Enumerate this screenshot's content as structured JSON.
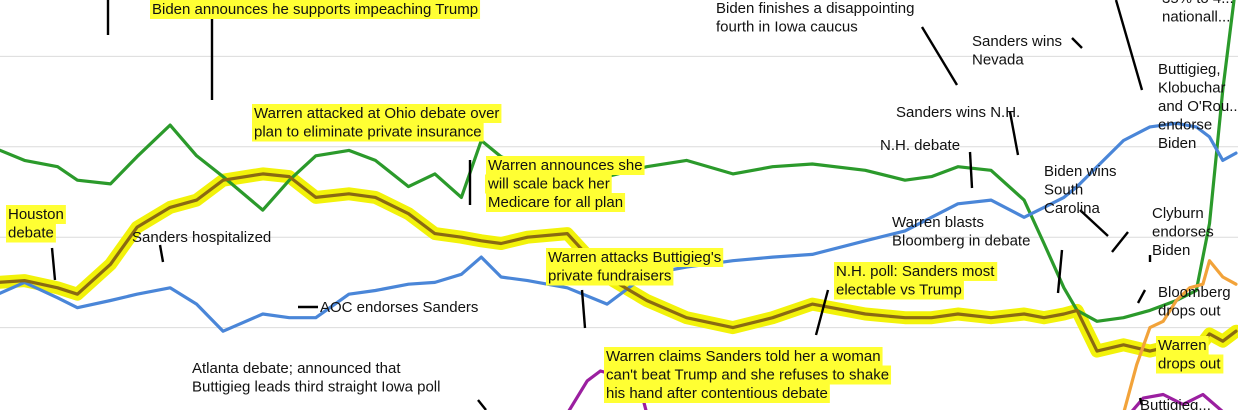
{
  "chart_data": {
    "type": "line",
    "title": "",
    "xlabel": "",
    "ylabel": "",
    "x_range": [
      "2019-09-01",
      "2020-03-06"
    ],
    "ylim": [
      0,
      50
    ],
    "grid": true,
    "grid_values": [
      10,
      20,
      30,
      40
    ],
    "colors": {
      "biden": "#2b9a2b",
      "sanders": "#4a86d8",
      "warren": "#8a6a12",
      "warren_highlight": "#f2f20a",
      "bloomberg": "#f2a33a",
      "buttigieg": "#9b1fa0",
      "label_highlight": "#ffff33"
    },
    "series": [
      {
        "key": "biden",
        "values": [
          [
            "2019-09-01",
            29.7
          ],
          [
            "2019-09-05",
            28.5
          ],
          [
            "2019-09-10",
            27.8
          ],
          [
            "2019-09-13",
            26.3
          ],
          [
            "2019-09-18",
            25.9
          ],
          [
            "2019-09-22",
            28.9
          ],
          [
            "2019-09-27",
            32.4
          ],
          [
            "2019-10-01",
            29.0
          ],
          [
            "2019-10-05",
            26.7
          ],
          [
            "2019-10-11",
            23.0
          ],
          [
            "2019-10-15",
            26.3
          ],
          [
            "2019-10-19",
            29.0
          ],
          [
            "2019-10-24",
            29.6
          ],
          [
            "2019-10-28",
            28.5
          ],
          [
            "2019-11-02",
            25.6
          ],
          [
            "2019-11-06",
            27.0
          ],
          [
            "2019-11-10",
            24.4
          ],
          [
            "2019-11-13",
            30.7
          ],
          [
            "2019-11-16",
            28.9
          ],
          [
            "2019-11-20",
            27.8
          ],
          [
            "2019-11-26",
            25.6
          ],
          [
            "2019-12-02",
            26.7
          ],
          [
            "2019-12-08",
            27.8
          ],
          [
            "2019-12-14",
            28.5
          ],
          [
            "2019-12-21",
            27.0
          ],
          [
            "2019-12-27",
            27.8
          ],
          [
            "2020-01-02",
            28.1
          ],
          [
            "2020-01-10",
            27.4
          ],
          [
            "2020-01-16",
            26.3
          ],
          [
            "2020-01-20",
            26.7
          ],
          [
            "2020-01-24",
            27.8
          ],
          [
            "2020-01-29",
            27.4
          ],
          [
            "2020-02-03",
            24.1
          ],
          [
            "2020-02-06",
            19.3
          ],
          [
            "2020-02-09",
            14.4
          ],
          [
            "2020-02-11",
            11.9
          ],
          [
            "2020-02-14",
            10.7
          ],
          [
            "2020-02-18",
            11.1
          ],
          [
            "2020-02-22",
            11.9
          ],
          [
            "2020-02-26",
            13.0
          ],
          [
            "2020-02-29",
            14.1
          ],
          [
            "2020-03-02",
            21.5
          ],
          [
            "2020-03-04",
            36.3
          ],
          [
            "2020-03-06",
            48.0
          ]
        ]
      },
      {
        "key": "sanders",
        "values": [
          [
            "2019-09-01",
            13.7
          ],
          [
            "2019-09-05",
            15.0
          ],
          [
            "2019-09-10",
            13.3
          ],
          [
            "2019-09-13",
            12.2
          ],
          [
            "2019-09-18",
            13.0
          ],
          [
            "2019-09-22",
            13.7
          ],
          [
            "2019-09-27",
            14.4
          ],
          [
            "2019-10-01",
            12.6
          ],
          [
            "2019-10-05",
            9.6
          ],
          [
            "2019-10-11",
            11.5
          ],
          [
            "2019-10-15",
            11.1
          ],
          [
            "2019-10-19",
            11.1
          ],
          [
            "2019-10-24",
            13.7
          ],
          [
            "2019-10-28",
            14.1
          ],
          [
            "2019-11-02",
            14.8
          ],
          [
            "2019-11-06",
            15.0
          ],
          [
            "2019-11-10",
            15.9
          ],
          [
            "2019-11-13",
            17.8
          ],
          [
            "2019-11-16",
            15.6
          ],
          [
            "2019-11-20",
            15.2
          ],
          [
            "2019-11-26",
            14.4
          ],
          [
            "2019-12-02",
            12.6
          ],
          [
            "2019-12-08",
            15.9
          ],
          [
            "2019-12-14",
            16.7
          ],
          [
            "2019-12-21",
            17.4
          ],
          [
            "2019-12-27",
            17.8
          ],
          [
            "2020-01-02",
            18.1
          ],
          [
            "2020-01-10",
            19.6
          ],
          [
            "2020-01-16",
            20.7
          ],
          [
            "2020-01-20",
            22.2
          ],
          [
            "2020-01-24",
            23.7
          ],
          [
            "2020-01-29",
            24.1
          ],
          [
            "2020-02-03",
            22.2
          ],
          [
            "2020-02-06",
            23.3
          ],
          [
            "2020-02-09",
            24.4
          ],
          [
            "2020-02-11",
            25.6
          ],
          [
            "2020-02-14",
            27.8
          ],
          [
            "2020-02-18",
            30.7
          ],
          [
            "2020-02-22",
            32.2
          ],
          [
            "2020-02-26",
            32.6
          ],
          [
            "2020-02-29",
            32.2
          ],
          [
            "2020-03-02",
            31.1
          ],
          [
            "2020-03-04",
            28.5
          ],
          [
            "2020-03-06",
            29.3
          ]
        ]
      },
      {
        "key": "warren",
        "values": [
          [
            "2019-09-01",
            15.0
          ],
          [
            "2019-09-05",
            15.2
          ],
          [
            "2019-09-10",
            14.4
          ],
          [
            "2019-09-13",
            13.7
          ],
          [
            "2019-09-18",
            17.0
          ],
          [
            "2019-09-22",
            21.1
          ],
          [
            "2019-09-27",
            23.3
          ],
          [
            "2019-10-01",
            24.1
          ],
          [
            "2019-10-05",
            26.3
          ],
          [
            "2019-10-11",
            27.0
          ],
          [
            "2019-10-15",
            26.7
          ],
          [
            "2019-10-19",
            24.4
          ],
          [
            "2019-10-24",
            24.8
          ],
          [
            "2019-10-28",
            24.4
          ],
          [
            "2019-11-02",
            22.6
          ],
          [
            "2019-11-06",
            20.4
          ],
          [
            "2019-11-10",
            20.0
          ],
          [
            "2019-11-13",
            19.6
          ],
          [
            "2019-11-16",
            19.3
          ],
          [
            "2019-11-20",
            20.0
          ],
          [
            "2019-11-26",
            20.4
          ],
          [
            "2019-12-02",
            15.6
          ],
          [
            "2019-12-08",
            13.0
          ],
          [
            "2019-12-14",
            11.1
          ],
          [
            "2019-12-21",
            10.0
          ],
          [
            "2019-12-27",
            11.1
          ],
          [
            "2020-01-02",
            12.6
          ],
          [
            "2020-01-10",
            11.5
          ],
          [
            "2020-01-16",
            11.1
          ],
          [
            "2020-01-20",
            11.1
          ],
          [
            "2020-01-24",
            11.5
          ],
          [
            "2020-01-29",
            11.1
          ],
          [
            "2020-02-03",
            11.5
          ],
          [
            "2020-02-06",
            11.1
          ],
          [
            "2020-02-09",
            11.5
          ],
          [
            "2020-02-11",
            11.9
          ],
          [
            "2020-02-14",
            7.4
          ],
          [
            "2020-02-18",
            8.1
          ],
          [
            "2020-02-22",
            7.4
          ],
          [
            "2020-02-26",
            8.1
          ],
          [
            "2020-02-29",
            7.4
          ],
          [
            "2020-03-02",
            9.3
          ],
          [
            "2020-03-04",
            8.5
          ],
          [
            "2020-03-06",
            9.6
          ]
        ]
      },
      {
        "key": "bloomberg",
        "values": [
          [
            "2020-02-18",
            0.5
          ],
          [
            "2020-02-20",
            5.9
          ],
          [
            "2020-02-22",
            10.0
          ],
          [
            "2020-02-24",
            10.7
          ],
          [
            "2020-02-26",
            13.0
          ],
          [
            "2020-02-28",
            14.4
          ],
          [
            "2020-03-01",
            14.8
          ],
          [
            "2020-03-02",
            17.4
          ],
          [
            "2020-03-04",
            15.6
          ],
          [
            "2020-03-06",
            14.8
          ]
        ]
      },
      {
        "key": "buttigieg",
        "values": [
          [
            "2019-11-26",
            0.5
          ],
          [
            "2019-11-29",
            4.1
          ],
          [
            "2019-12-01",
            5.2
          ],
          [
            "2019-12-03",
            4.8
          ],
          [
            "2019-12-05",
            5.0
          ],
          [
            "2019-12-07",
            3.3
          ],
          [
            "2019-12-08",
            0.5
          ],
          [
            "2020-02-19",
            0.5
          ],
          [
            "2020-02-21",
            2.2
          ],
          [
            "2020-02-24",
            2.6
          ],
          [
            "2020-02-27",
            1.5
          ],
          [
            "2020-03-01",
            2.6
          ],
          [
            "2020-03-04",
            0.7
          ]
        ]
      }
    ],
    "annotations": [
      {
        "lines": [
          "Biden announces he supports impeaching Trump"
        ],
        "highlight": true
      },
      {
        "lines": [
          "Biden finishes a disappointing",
          "fourth in Iowa caucus"
        ],
        "highlight": false
      },
      {
        "lines": [
          "Sanders wins",
          "Nevada"
        ],
        "highlight": false
      },
      {
        "lines": [
          "35% to 4...",
          "nationall..."
        ],
        "highlight": false
      },
      {
        "lines": [
          "Warren attacked at Ohio debate over",
          "plan to eliminate private insurance"
        ],
        "highlight": true
      },
      {
        "lines": [
          "Sanders wins N.H."
        ],
        "highlight": false
      },
      {
        "lines": [
          "Buttigieg,",
          "Klobuchar",
          "and O'Rou...",
          "endorse",
          "Biden"
        ],
        "highlight": false
      },
      {
        "lines": [
          "N.H. debate"
        ],
        "highlight": false
      },
      {
        "lines": [
          "Warren announces she",
          "will scale back her",
          "Medicare for all plan"
        ],
        "highlight": true
      },
      {
        "lines": [
          "Biden wins",
          "South",
          "Carolina"
        ],
        "highlight": false
      },
      {
        "lines": [
          "Houston",
          "debate"
        ],
        "highlight": true
      },
      {
        "lines": [
          "Sanders hospitalized"
        ],
        "highlight": false
      },
      {
        "lines": [
          "Warren blasts",
          "Bloomberg in debate"
        ],
        "highlight": false
      },
      {
        "lines": [
          "Clyburn",
          "endorses",
          "Biden"
        ],
        "highlight": false
      },
      {
        "lines": [
          "Warren attacks Buttigieg's",
          "private fundraisers"
        ],
        "highlight": true
      },
      {
        "lines": [
          "N.H. poll: Sanders most",
          "electable vs Trump"
        ],
        "highlight": true
      },
      {
        "lines": [
          "Bloomberg",
          "drops out"
        ],
        "highlight": false
      },
      {
        "lines": [
          "AOC endorses Sanders"
        ],
        "highlight": false
      },
      {
        "lines": [
          "Warren",
          "drops out"
        ],
        "highlight": true
      },
      {
        "lines": [
          "Atlanta debate; announced that",
          "Buttigieg leads third straight Iowa poll"
        ],
        "highlight": false
      },
      {
        "lines": [
          "Warren claims Sanders told her a woman",
          "can't beat Trump and she refuses to shake",
          "his hand after contentious debate"
        ],
        "highlight": true
      },
      {
        "lines": [
          "Buttigieg..."
        ],
        "highlight": false
      }
    ]
  }
}
